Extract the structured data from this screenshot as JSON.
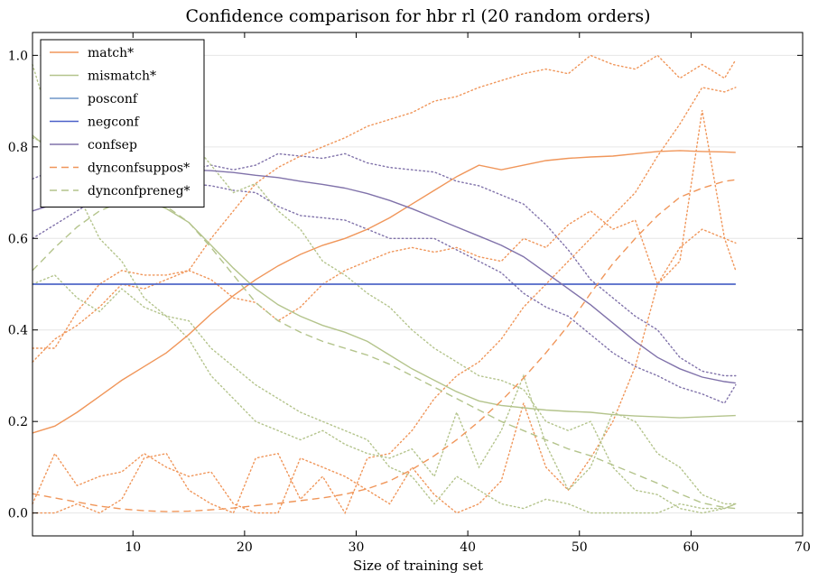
{
  "chart_data": {
    "type": "line",
    "title": "Confidence comparison for hbr rl (20 random orders)",
    "xlabel": "Size of training set",
    "ylabel": "",
    "xlim": [
      1,
      70
    ],
    "ylim": [
      -0.05,
      1.05
    ],
    "xticks": [
      10,
      20,
      30,
      40,
      50,
      60,
      70
    ],
    "xtick_labels": [
      "10",
      "20",
      "30",
      "40",
      "50",
      "60",
      "70"
    ],
    "yticks": [
      0.0,
      0.2,
      0.4,
      0.6,
      0.8,
      1.0
    ],
    "ytick_labels": [
      "0.0",
      "0.2",
      "0.4",
      "0.6",
      "0.8",
      "1.0"
    ],
    "grid": "horizontal",
    "legend_position": "top-left",
    "x": [
      1,
      3,
      5,
      7,
      9,
      11,
      13,
      15,
      17,
      19,
      21,
      23,
      25,
      27,
      29,
      31,
      33,
      35,
      37,
      39,
      41,
      43,
      45,
      47,
      49,
      51,
      53,
      55,
      57,
      59,
      61,
      63,
      64
    ],
    "series": [
      {
        "name": "match*",
        "color": "#f0965a",
        "dash": "solid",
        "values": [
          0.175,
          0.19,
          0.22,
          0.255,
          0.29,
          0.32,
          0.35,
          0.39,
          0.435,
          0.475,
          0.51,
          0.54,
          0.565,
          0.585,
          0.6,
          0.62,
          0.645,
          0.675,
          0.705,
          0.735,
          0.76,
          0.75,
          0.76,
          0.77,
          0.775,
          0.778,
          0.78,
          0.785,
          0.79,
          0.792,
          0.79,
          0.789,
          0.788
        ]
      },
      {
        "name": "mismatch*",
        "color": "#b4c48c",
        "dash": "solid",
        "values": [
          0.825,
          0.785,
          0.735,
          0.71,
          0.695,
          0.685,
          0.665,
          0.635,
          0.585,
          0.535,
          0.49,
          0.455,
          0.43,
          0.41,
          0.395,
          0.375,
          0.345,
          0.315,
          0.29,
          0.265,
          0.245,
          0.235,
          0.23,
          0.225,
          0.222,
          0.22,
          0.215,
          0.212,
          0.21,
          0.208,
          0.21,
          0.212,
          0.213
        ]
      },
      {
        "name": "posconf",
        "color": "#6f96c8",
        "dash": "solid",
        "values": [
          0.5,
          0.5,
          0.5,
          0.5,
          0.5,
          0.5,
          0.5,
          0.5,
          0.5,
          0.5,
          0.5,
          0.5,
          0.5,
          0.5,
          0.5,
          0.5,
          0.5,
          0.5,
          0.5,
          0.5,
          0.5,
          0.5,
          0.5,
          0.5,
          0.5,
          0.5,
          0.5,
          0.5,
          0.5,
          0.5,
          0.5,
          0.5,
          0.5
        ]
      },
      {
        "name": "negconf",
        "color": "#4a60c8",
        "dash": "solid",
        "values": [
          0.5,
          0.5,
          0.5,
          0.5,
          0.5,
          0.5,
          0.5,
          0.5,
          0.5,
          0.5,
          0.5,
          0.5,
          0.5,
          0.5,
          0.5,
          0.5,
          0.5,
          0.5,
          0.5,
          0.5,
          0.5,
          0.5,
          0.5,
          0.5,
          0.5,
          0.5,
          0.5,
          0.5,
          0.5,
          0.5,
          0.5,
          0.5,
          0.5
        ]
      },
      {
        "name": "confsep",
        "color": "#8072aa",
        "dash": "solid",
        "values": [
          0.66,
          0.675,
          0.695,
          0.71,
          0.725,
          0.735,
          0.745,
          0.75,
          0.748,
          0.744,
          0.738,
          0.733,
          0.725,
          0.718,
          0.71,
          0.698,
          0.683,
          0.665,
          0.645,
          0.625,
          0.605,
          0.585,
          0.56,
          0.525,
          0.49,
          0.455,
          0.415,
          0.375,
          0.34,
          0.315,
          0.297,
          0.287,
          0.284
        ]
      },
      {
        "name": "dynconfsuppos*",
        "color": "#f0965a",
        "dash": "dashed",
        "values": [
          0.042,
          0.033,
          0.024,
          0.015,
          0.009,
          0.005,
          0.003,
          0.004,
          0.007,
          0.011,
          0.016,
          0.021,
          0.027,
          0.033,
          0.041,
          0.053,
          0.07,
          0.095,
          0.125,
          0.16,
          0.2,
          0.245,
          0.295,
          0.35,
          0.41,
          0.48,
          0.545,
          0.6,
          0.65,
          0.69,
          0.71,
          0.725,
          0.728
        ]
      },
      {
        "name": "dynconfpreneg*",
        "color": "#b4c48c",
        "dash": "dashed",
        "values": [
          0.53,
          0.58,
          0.625,
          0.66,
          0.68,
          0.688,
          0.67,
          0.635,
          0.58,
          0.52,
          0.46,
          0.42,
          0.395,
          0.375,
          0.36,
          0.345,
          0.325,
          0.3,
          0.275,
          0.25,
          0.225,
          0.2,
          0.18,
          0.16,
          0.14,
          0.125,
          0.105,
          0.085,
          0.065,
          0.042,
          0.022,
          0.012,
          0.01
        ]
      }
    ],
    "background_dotted_series": [
      {
        "color": "#8072aa",
        "values": [
          0.6,
          0.63,
          0.66,
          0.69,
          0.71,
          0.73,
          0.74,
          0.75,
          0.76,
          0.75,
          0.76,
          0.785,
          0.78,
          0.775,
          0.785,
          0.765,
          0.755,
          0.75,
          0.745,
          0.725,
          0.715,
          0.695,
          0.675,
          0.63,
          0.575,
          0.51,
          0.47,
          0.43,
          0.4,
          0.34,
          0.31,
          0.3,
          0.3
        ]
      },
      {
        "color": "#8072aa",
        "values": [
          0.73,
          0.75,
          0.765,
          0.77,
          0.76,
          0.74,
          0.73,
          0.72,
          0.715,
          0.705,
          0.7,
          0.67,
          0.65,
          0.645,
          0.64,
          0.62,
          0.6,
          0.6,
          0.6,
          0.575,
          0.55,
          0.525,
          0.48,
          0.45,
          0.43,
          0.39,
          0.35,
          0.32,
          0.3,
          0.275,
          0.26,
          0.24,
          0.28
        ]
      },
      {
        "color": "#f0965a",
        "values": [
          0.33,
          0.38,
          0.41,
          0.45,
          0.5,
          0.49,
          0.51,
          0.53,
          0.6,
          0.66,
          0.72,
          0.755,
          0.78,
          0.8,
          0.82,
          0.845,
          0.86,
          0.875,
          0.9,
          0.91,
          0.93,
          0.945,
          0.96,
          0.97,
          0.96,
          1.0,
          0.98,
          0.97,
          1.0,
          0.95,
          0.98,
          0.95,
          0.99
        ]
      },
      {
        "color": "#f0965a",
        "values": [
          0.0,
          0.0,
          0.02,
          0.0,
          0.03,
          0.12,
          0.13,
          0.05,
          0.02,
          0.0,
          0.12,
          0.13,
          0.03,
          0.08,
          0.0,
          0.12,
          0.13,
          0.18,
          0.25,
          0.3,
          0.33,
          0.38,
          0.45,
          0.5,
          0.55,
          0.6,
          0.65,
          0.7,
          0.78,
          0.85,
          0.93,
          0.92,
          0.93
        ]
      },
      {
        "color": "#f0965a",
        "values": [
          0.36,
          0.36,
          0.44,
          0.5,
          0.53,
          0.52,
          0.52,
          0.53,
          0.51,
          0.47,
          0.46,
          0.42,
          0.45,
          0.5,
          0.53,
          0.55,
          0.57,
          0.58,
          0.57,
          0.58,
          0.56,
          0.55,
          0.6,
          0.58,
          0.63,
          0.66,
          0.62,
          0.64,
          0.5,
          0.58,
          0.62,
          0.6,
          0.59
        ]
      },
      {
        "color": "#f0965a",
        "values": [
          0.02,
          0.13,
          0.06,
          0.08,
          0.09,
          0.13,
          0.1,
          0.08,
          0.09,
          0.02,
          0.0,
          0.0,
          0.12,
          0.1,
          0.08,
          0.05,
          0.02,
          0.1,
          0.04,
          0.0,
          0.02,
          0.07,
          0.24,
          0.1,
          0.05,
          0.12,
          0.2,
          0.32,
          0.5,
          0.55,
          0.88,
          0.6,
          0.53
        ]
      },
      {
        "color": "#b4c48c",
        "values": [
          0.82,
          0.8,
          0.75,
          0.72,
          0.7,
          0.74,
          0.79,
          0.82,
          0.76,
          0.7,
          0.72,
          0.66,
          0.62,
          0.55,
          0.52,
          0.48,
          0.45,
          0.4,
          0.36,
          0.33,
          0.3,
          0.29,
          0.27,
          0.2,
          0.18,
          0.2,
          0.1,
          0.05,
          0.04,
          0.01,
          0.0,
          0.01,
          0.02
        ]
      },
      {
        "color": "#b4c48c",
        "values": [
          0.98,
          0.82,
          0.7,
          0.6,
          0.55,
          0.47,
          0.43,
          0.42,
          0.36,
          0.32,
          0.28,
          0.25,
          0.22,
          0.2,
          0.18,
          0.16,
          0.1,
          0.08,
          0.02,
          0.08,
          0.05,
          0.02,
          0.01,
          0.03,
          0.02,
          0.0,
          0.0,
          0.0,
          0.0,
          0.02,
          0.01,
          0.01,
          0.02
        ]
      },
      {
        "color": "#b4c48c",
        "values": [
          0.5,
          0.52,
          0.47,
          0.44,
          0.49,
          0.45,
          0.43,
          0.38,
          0.3,
          0.25,
          0.2,
          0.18,
          0.16,
          0.18,
          0.15,
          0.13,
          0.12,
          0.14,
          0.08,
          0.22,
          0.1,
          0.18,
          0.3,
          0.15,
          0.05,
          0.1,
          0.22,
          0.2,
          0.13,
          0.1,
          0.04,
          0.02,
          0.02
        ]
      }
    ]
  }
}
